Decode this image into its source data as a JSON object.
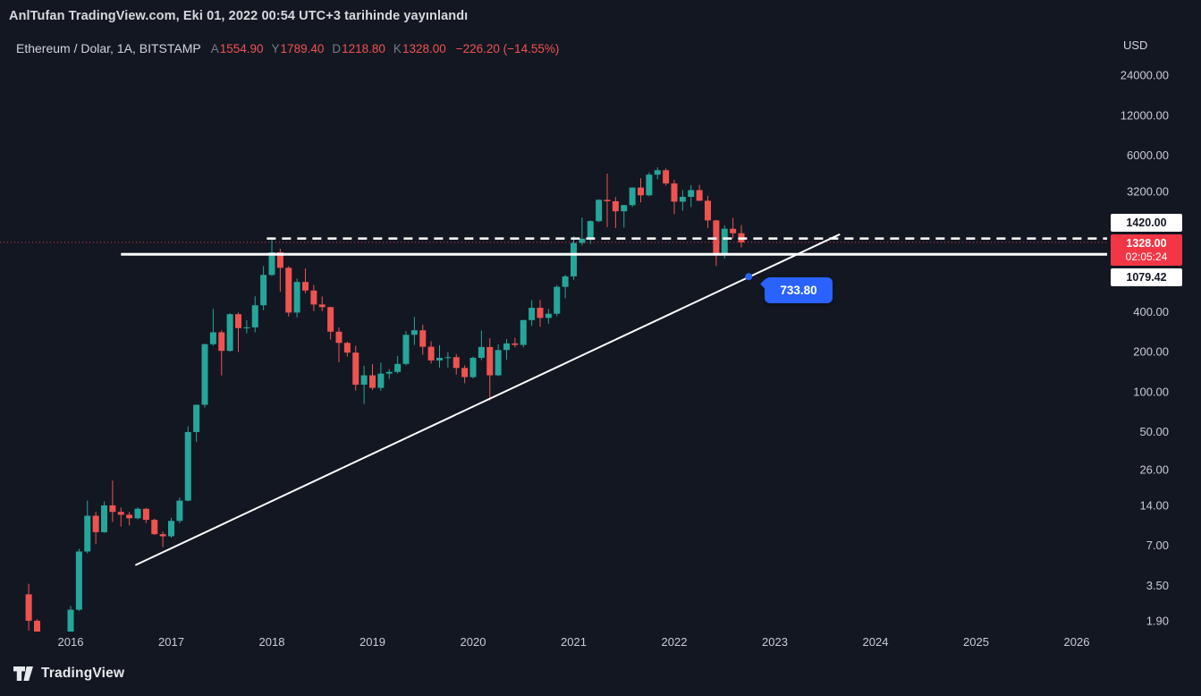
{
  "header": {
    "byline": "AnlTufan TradingView.com, Eki 01, 2022 00:54 UTC+3 tarihinde yayınlandı"
  },
  "legend": {
    "symbol": "Ethereum / Dolar, 1A, BITSTAMP",
    "ohlc": [
      {
        "label": "A",
        "value": "1554.90"
      },
      {
        "label": "Y",
        "value": "1789.40"
      },
      {
        "label": "D",
        "value": "1218.80"
      },
      {
        "label": "K",
        "value": "1328.00"
      }
    ],
    "change": "−226.20 (−14.55%)"
  },
  "price_axis": {
    "currency": "USD",
    "ticks": [
      {
        "label": "24000.00",
        "value": 24000
      },
      {
        "label": "12000.00",
        "value": 12000
      },
      {
        "label": "6000.00",
        "value": 6000
      },
      {
        "label": "3200.00",
        "value": 3200
      },
      {
        "label": "400.00",
        "value": 400
      },
      {
        "label": "200.00",
        "value": 200
      },
      {
        "label": "100.00",
        "value": 100
      },
      {
        "label": "50.00",
        "value": 50
      },
      {
        "label": "26.00",
        "value": 26
      },
      {
        "label": "14.00",
        "value": 14
      },
      {
        "label": "7.00",
        "value": 7
      },
      {
        "label": "3.50",
        "value": 3.5
      },
      {
        "label": "1.90",
        "value": 1.9
      }
    ],
    "tags": [
      {
        "label": "1420.00",
        "price": 1420,
        "bg": "#ffffff",
        "fg": "#131722"
      },
      {
        "label": "1328.00",
        "sub": "02:05:24",
        "price": 1328,
        "bg": "#f23645",
        "fg": "#ffffff"
      },
      {
        "label": "1079.42",
        "price": 1079.42,
        "bg": "#ffffff",
        "fg": "#131722"
      }
    ]
  },
  "time_axis": {
    "years": [
      2016,
      2017,
      2018,
      2019,
      2020,
      2021,
      2022,
      2023,
      2024,
      2025,
      2026
    ]
  },
  "footer": {
    "brand": "TradingView"
  },
  "chart_data": {
    "type": "candlestick",
    "title": "Ethereum / Dolar",
    "exchange": "BITSTAMP",
    "interval": "1A",
    "scale": "logarithmic",
    "x_range": [
      2015.3,
      2026.4
    ],
    "ylim": [
      1.5,
      30000
    ],
    "colors": {
      "up": "#26a69a",
      "down": "#ef5350",
      "last_price": "#f23645",
      "drawing": "#ffffff",
      "marker": "#2962ff"
    },
    "candles": {
      "columns": [
        "month",
        "open",
        "high",
        "low",
        "close"
      ],
      "rows": [
        [
          "2015-08",
          3.0,
          3.6,
          1.6,
          1.9
        ],
        [
          "2015-09",
          1.9,
          1.95,
          0.6,
          0.72
        ],
        [
          "2015-10",
          0.72,
          1.1,
          0.42,
          0.92
        ],
        [
          "2015-11",
          0.92,
          1.1,
          0.78,
          0.88
        ],
        [
          "2015-12",
          0.88,
          1.02,
          0.8,
          0.93
        ],
        [
          "2016-01",
          0.93,
          2.45,
          0.9,
          2.3
        ],
        [
          "2016-02",
          2.3,
          6.6,
          2.25,
          6.3
        ],
        [
          "2016-03",
          6.3,
          15.2,
          6.1,
          11.7
        ],
        [
          "2016-04",
          11.7,
          12.5,
          7.2,
          8.8
        ],
        [
          "2016-05",
          8.8,
          15.0,
          8.7,
          14.0
        ],
        [
          "2016-06",
          14.0,
          21.5,
          10.5,
          12.5
        ],
        [
          "2016-07",
          12.5,
          13.5,
          9.7,
          11.9
        ],
        [
          "2016-08",
          11.9,
          12.5,
          9.9,
          11.2
        ],
        [
          "2016-09",
          11.2,
          13.5,
          11.0,
          13.2
        ],
        [
          "2016-10",
          13.2,
          13.4,
          10.3,
          10.9
        ],
        [
          "2016-11",
          10.9,
          11.1,
          8.4,
          8.5
        ],
        [
          "2016-12",
          8.5,
          8.9,
          6.8,
          8.2
        ],
        [
          "2017-01",
          8.2,
          11.3,
          8.0,
          10.7
        ],
        [
          "2017-02",
          10.7,
          16.0,
          10.3,
          15.2
        ],
        [
          "2017-03",
          15.2,
          55.0,
          15.0,
          49.8
        ],
        [
          "2017-04",
          49.8,
          80.0,
          42.0,
          79.9
        ],
        [
          "2017-05",
          79.9,
          230.0,
          76.0,
          228.0
        ],
        [
          "2017-06",
          228.0,
          420.0,
          222.0,
          280.0
        ],
        [
          "2017-07",
          280.0,
          290.0,
          133.0,
          203.0
        ],
        [
          "2017-08",
          203.0,
          390.0,
          200.0,
          383.0
        ],
        [
          "2017-09",
          383.0,
          395.0,
          199.0,
          301.0
        ],
        [
          "2017-10",
          301.0,
          345.0,
          275.0,
          305.0
        ],
        [
          "2017-11",
          305.0,
          522.0,
          280.0,
          447.0
        ],
        [
          "2017-12",
          447.0,
          881.0,
          410.0,
          756.0
        ],
        [
          "2018-01",
          756.0,
          1432.0,
          742.0,
          1118.0
        ],
        [
          "2018-02",
          1118.0,
          1190.0,
          565.0,
          855.0
        ],
        [
          "2018-03",
          855.0,
          880.0,
          368.0,
          394.0
        ],
        [
          "2018-04",
          394.0,
          710.0,
          362.0,
          669.0
        ],
        [
          "2018-05",
          669.0,
          845.0,
          550.0,
          577.0
        ],
        [
          "2018-06",
          577.0,
          635.0,
          404.0,
          453.0
        ],
        [
          "2018-07",
          453.0,
          520.0,
          403.0,
          433.0
        ],
        [
          "2018-08",
          433.0,
          435.0,
          247.0,
          283.0
        ],
        [
          "2018-09",
          283.0,
          305.0,
          167.0,
          233.0
        ],
        [
          "2018-10",
          233.0,
          238.0,
          184.0,
          197.0
        ],
        [
          "2018-11",
          197.0,
          222.0,
          102.0,
          113.0
        ],
        [
          "2018-12",
          113.0,
          157.0,
          81.0,
          133.0
        ],
        [
          "2019-01",
          133.0,
          161.0,
          103.0,
          107.0
        ],
        [
          "2019-02",
          107.0,
          166.0,
          102.0,
          137.0
        ],
        [
          "2019-03",
          137.0,
          148.0,
          125.0,
          141.0
        ],
        [
          "2019-04",
          141.0,
          186.0,
          137.0,
          162.0
        ],
        [
          "2019-05",
          162.0,
          285.0,
          158.0,
          268.0
        ],
        [
          "2019-06",
          268.0,
          365.0,
          225.0,
          290.0
        ],
        [
          "2019-07",
          290.0,
          319.0,
          190.0,
          218.0
        ],
        [
          "2019-08",
          218.0,
          239.0,
          163.0,
          172.0
        ],
        [
          "2019-09",
          172.0,
          224.0,
          152.0,
          180.0
        ],
        [
          "2019-10",
          180.0,
          199.0,
          152.0,
          182.0
        ],
        [
          "2019-11",
          182.0,
          192.0,
          135.0,
          151.0
        ],
        [
          "2019-12",
          151.0,
          158.0,
          116.0,
          129.0
        ],
        [
          "2020-01",
          129.0,
          184.0,
          126.0,
          180.0
        ],
        [
          "2020-02",
          180.0,
          289.0,
          173.0,
          217.0
        ],
        [
          "2020-03",
          217.0,
          253.0,
          86.0,
          133.0
        ],
        [
          "2020-04",
          133.0,
          227.0,
          131.0,
          206.0
        ],
        [
          "2020-05",
          206.0,
          249.0,
          174.0,
          231.0
        ],
        [
          "2020-06",
          231.0,
          254.0,
          216.0,
          225.0
        ],
        [
          "2020-07",
          225.0,
          347.0,
          216.0,
          346.0
        ],
        [
          "2020-08",
          346.0,
          488.0,
          313.0,
          428.0
        ],
        [
          "2020-09",
          428.0,
          489.0,
          308.0,
          359.0
        ],
        [
          "2020-10",
          359.0,
          420.0,
          325.0,
          386.0
        ],
        [
          "2020-11",
          386.0,
          635.0,
          370.0,
          615.0
        ],
        [
          "2020-12",
          615.0,
          758.0,
          505.0,
          737.0
        ],
        [
          "2021-01",
          737.0,
          1476.0,
          695.0,
          1314.0
        ],
        [
          "2021-02",
          1314.0,
          2040.0,
          1260.0,
          1416.0
        ],
        [
          "2021-03",
          1416.0,
          1947.0,
          1293.0,
          1918.0
        ],
        [
          "2021-04",
          1918.0,
          2798.0,
          1886.0,
          2773.0
        ],
        [
          "2021-05",
          2773.0,
          4372.0,
          1728.0,
          2706.0
        ],
        [
          "2021-06",
          2706.0,
          2912.0,
          1700.0,
          2274.0
        ],
        [
          "2021-07",
          2274.0,
          2540.0,
          1715.0,
          2530.0
        ],
        [
          "2021-08",
          2530.0,
          3438.0,
          2450.0,
          3430.0
        ],
        [
          "2021-09",
          3430.0,
          4028.0,
          2650.0,
          3000.0
        ],
        [
          "2021-10",
          3000.0,
          4460.0,
          2950.0,
          4288.0
        ],
        [
          "2021-11",
          4288.0,
          4868.0,
          3960.0,
          4631.0
        ],
        [
          "2021-12",
          4631.0,
          4780.0,
          3550.0,
          3682.0
        ],
        [
          "2022-01",
          3682.0,
          3915.0,
          2159.0,
          2687.0
        ],
        [
          "2022-02",
          2687.0,
          3285.0,
          2300.0,
          2920.0
        ],
        [
          "2022-03",
          2920.0,
          3580.0,
          2447.0,
          3281.0
        ],
        [
          "2022-04",
          3281.0,
          3583.0,
          2720.0,
          2730.0
        ],
        [
          "2022-05",
          2730.0,
          2974.0,
          1700.0,
          1942.0
        ],
        [
          "2022-06",
          1942.0,
          1960.0,
          881.0,
          1067.0
        ],
        [
          "2022-07",
          1067.0,
          1785.0,
          1007.0,
          1681.0
        ],
        [
          "2022-08",
          1681.0,
          2030.0,
          1421.0,
          1554.9
        ],
        [
          "2022-09",
          1554.9,
          1789.4,
          1218.8,
          1328.0
        ]
      ]
    },
    "overlays": {
      "last_price_line": {
        "price": 1328.0,
        "style": "dotted",
        "color": "#f23645"
      },
      "dashed_hline": {
        "price": 1420.0,
        "from": 2017.95,
        "style": "dashed",
        "color": "#ffffff"
      },
      "solid_hline": {
        "price": 1079.42,
        "from": 2016.5,
        "style": "solid",
        "color": "#ffffff"
      },
      "trendline": {
        "from": {
          "t": 2016.65,
          "price": 5.0
        },
        "to": {
          "t": 2023.64,
          "price": 1520.0
        },
        "color": "#ffffff"
      },
      "marker": {
        "t": 2022.74,
        "price": 733.8,
        "label": "733.80",
        "color": "#2962ff"
      }
    }
  }
}
